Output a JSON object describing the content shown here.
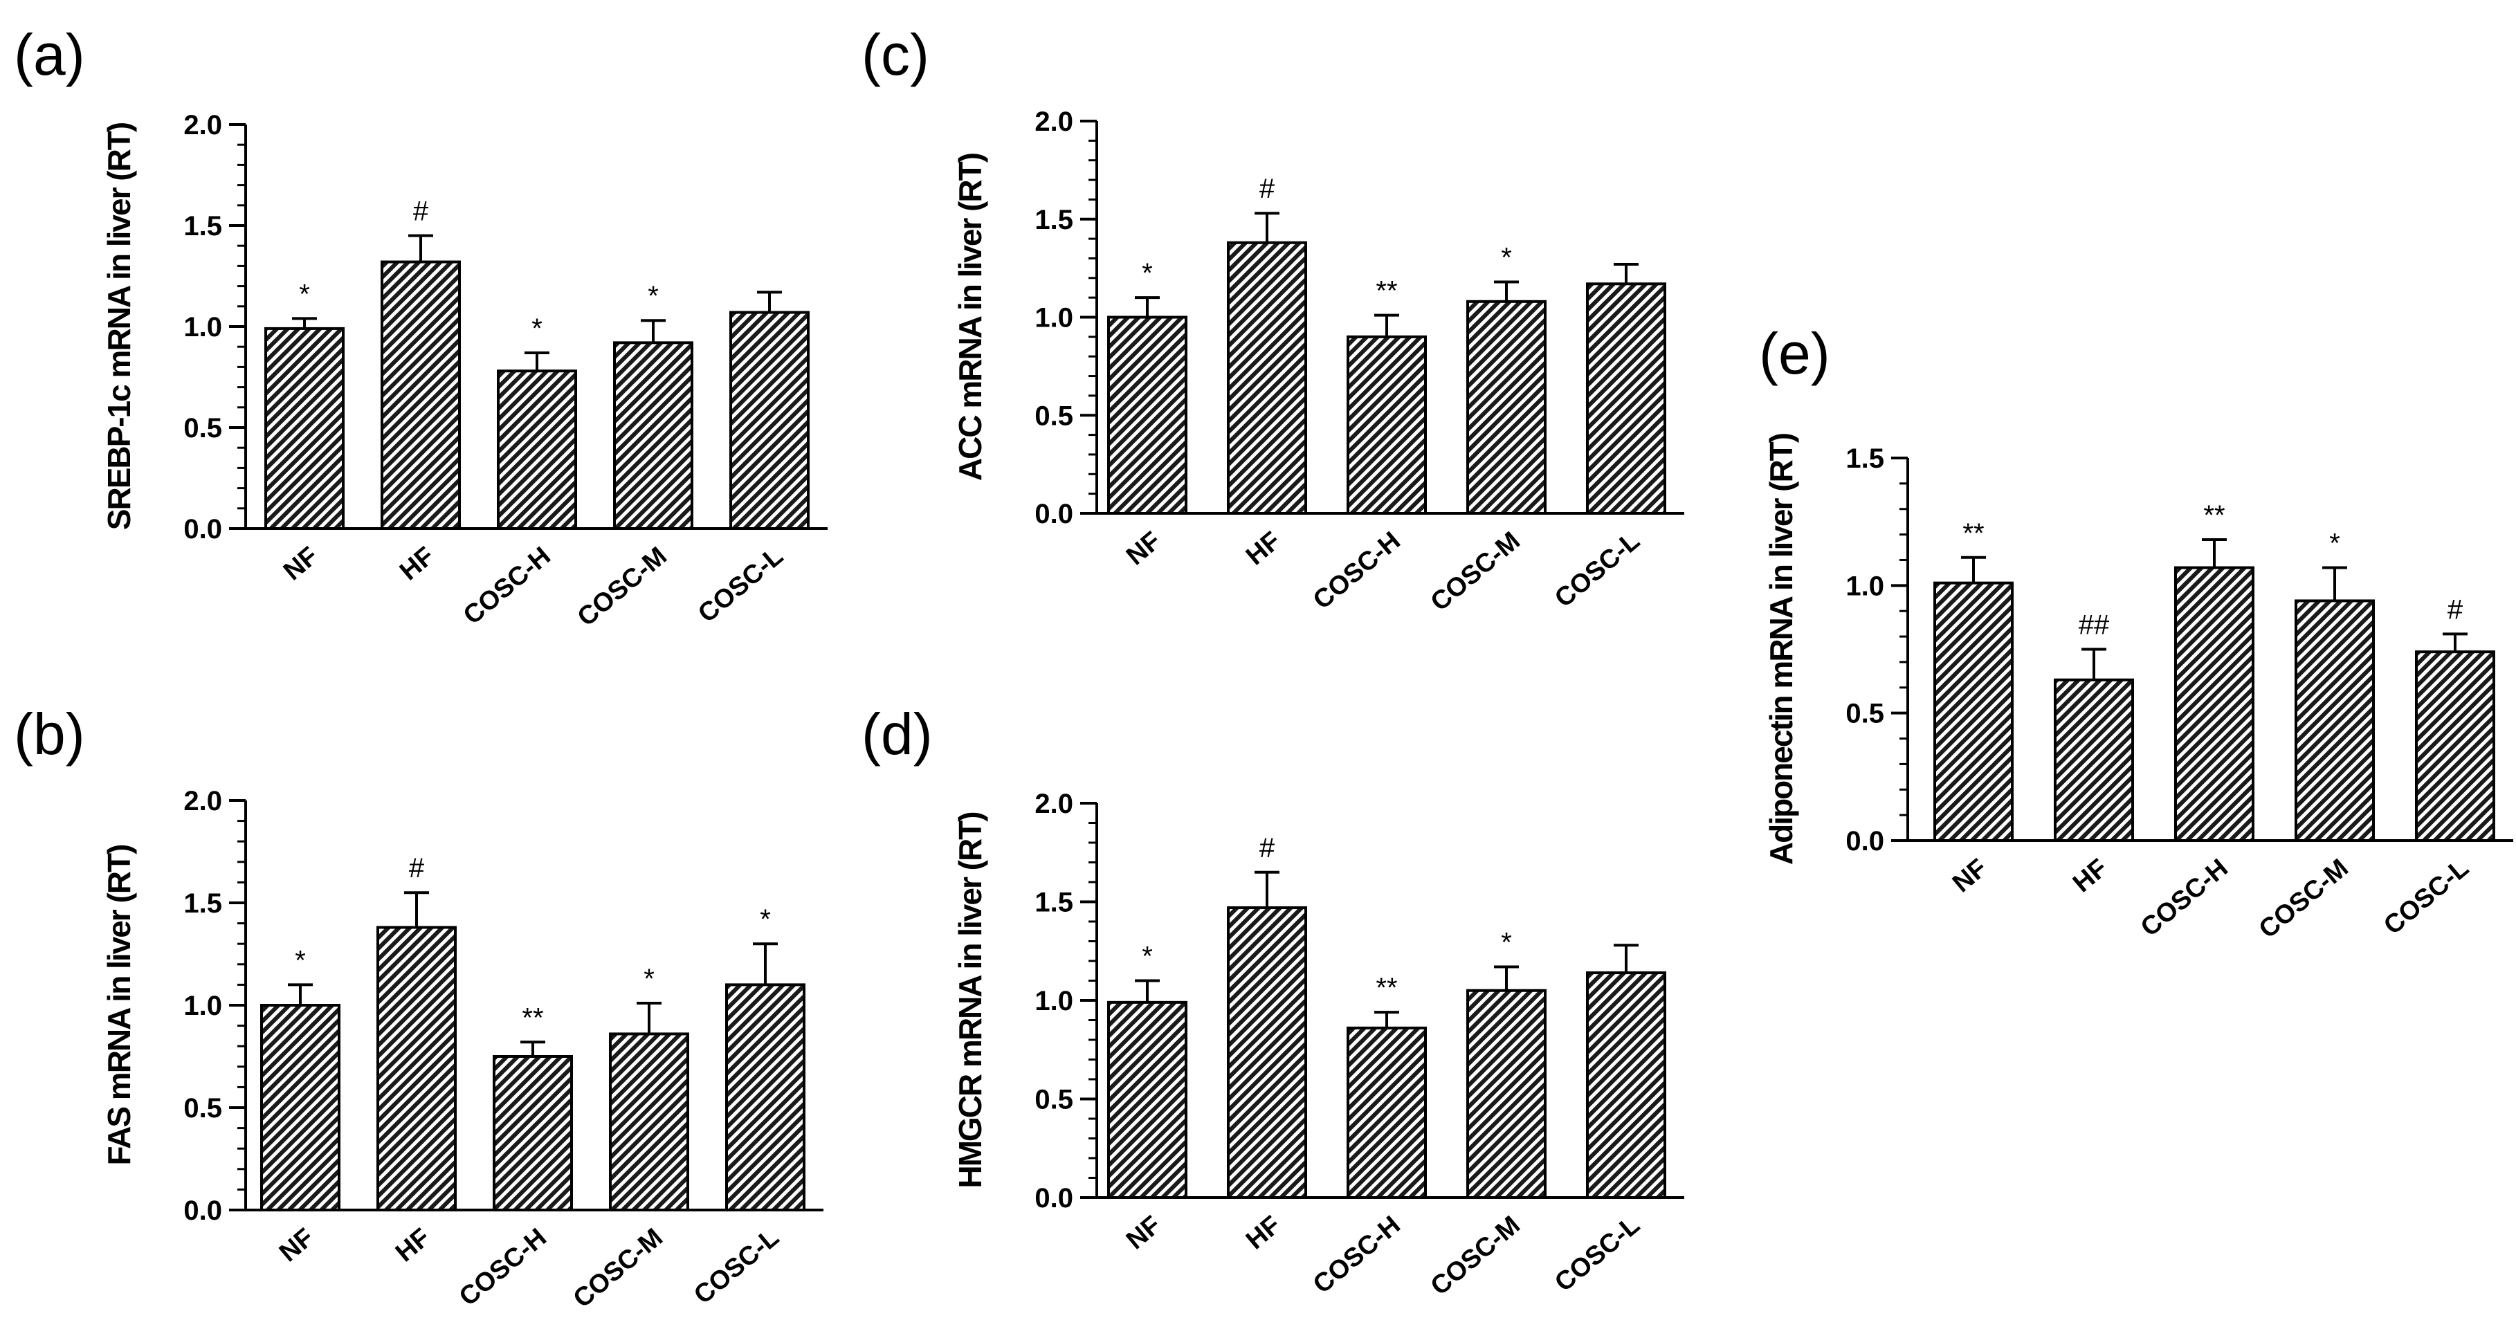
{
  "chart_data": [
    {
      "id": "a",
      "panel_label": "(a)",
      "type": "bar",
      "ylabel": "SREBP-1c mRNA in liver (RT)",
      "categories": [
        "NF",
        "HF",
        "COSC-H",
        "COSC-M",
        "COSC-L"
      ],
      "values": [
        0.99,
        1.32,
        0.78,
        0.92,
        1.07
      ],
      "errors": [
        0.05,
        0.13,
        0.09,
        0.11,
        0.1
      ],
      "significance": [
        "*",
        "#",
        "*",
        "*",
        ""
      ],
      "ylim": [
        0,
        2.0
      ],
      "yticks": [
        "0.0",
        "0.5",
        "1.0",
        "1.5",
        "2.0"
      ]
    },
    {
      "id": "b",
      "panel_label": "(b)",
      "type": "bar",
      "ylabel": "FAS mRNA in liver (RT)",
      "categories": [
        "NF",
        "HF",
        "COSC-H",
        "COSC-M",
        "COSC-L"
      ],
      "values": [
        1.0,
        1.38,
        0.75,
        0.86,
        1.1
      ],
      "errors": [
        0.1,
        0.17,
        0.07,
        0.15,
        0.2
      ],
      "significance": [
        "*",
        "#",
        "**",
        "*",
        "*"
      ],
      "ylim": [
        0,
        2.0
      ],
      "yticks": [
        "0.0",
        "0.5",
        "1.0",
        "1.5",
        "2.0"
      ]
    },
    {
      "id": "c",
      "panel_label": "(c)",
      "type": "bar",
      "ylabel": "ACC mRNA in liver (RT)",
      "categories": [
        "NF",
        "HF",
        "COSC-H",
        "COSC-M",
        "COSC-L"
      ],
      "values": [
        1.0,
        1.38,
        0.9,
        1.08,
        1.17
      ],
      "errors": [
        0.1,
        0.15,
        0.11,
        0.1,
        0.1
      ],
      "significance": [
        "*",
        "#",
        "**",
        "*",
        ""
      ],
      "ylim": [
        0,
        2.0
      ],
      "yticks": [
        "0.0",
        "0.5",
        "1.0",
        "1.5",
        "2.0"
      ]
    },
    {
      "id": "d",
      "panel_label": "(d)",
      "type": "bar",
      "ylabel": "HMGCR mRNA in liver (RT)",
      "categories": [
        "NF",
        "HF",
        "COSC-H",
        "COSC-M",
        "COSC-L"
      ],
      "values": [
        0.99,
        1.47,
        0.86,
        1.05,
        1.14
      ],
      "errors": [
        0.11,
        0.18,
        0.08,
        0.12,
        0.14
      ],
      "significance": [
        "*",
        "#",
        "**",
        "*",
        ""
      ],
      "ylim": [
        0,
        2.0
      ],
      "yticks": [
        "0.0",
        "0.5",
        "1.0",
        "1.5",
        "2.0"
      ]
    },
    {
      "id": "e",
      "panel_label": "(e)",
      "type": "bar",
      "ylabel": "Adiponectin mRNA in liver (RT)",
      "categories": [
        "NF",
        "HF",
        "COSC-H",
        "COSC-M",
        "COSC-L"
      ],
      "values": [
        1.01,
        0.63,
        1.07,
        0.94,
        0.74
      ],
      "errors": [
        0.1,
        0.12,
        0.11,
        0.13,
        0.07
      ],
      "significance": [
        "**",
        "##",
        "**",
        "*",
        "#"
      ],
      "ylim": [
        0,
        1.5
      ],
      "yticks": [
        "0.0",
        "0.5",
        "1.0",
        "1.5"
      ]
    }
  ]
}
